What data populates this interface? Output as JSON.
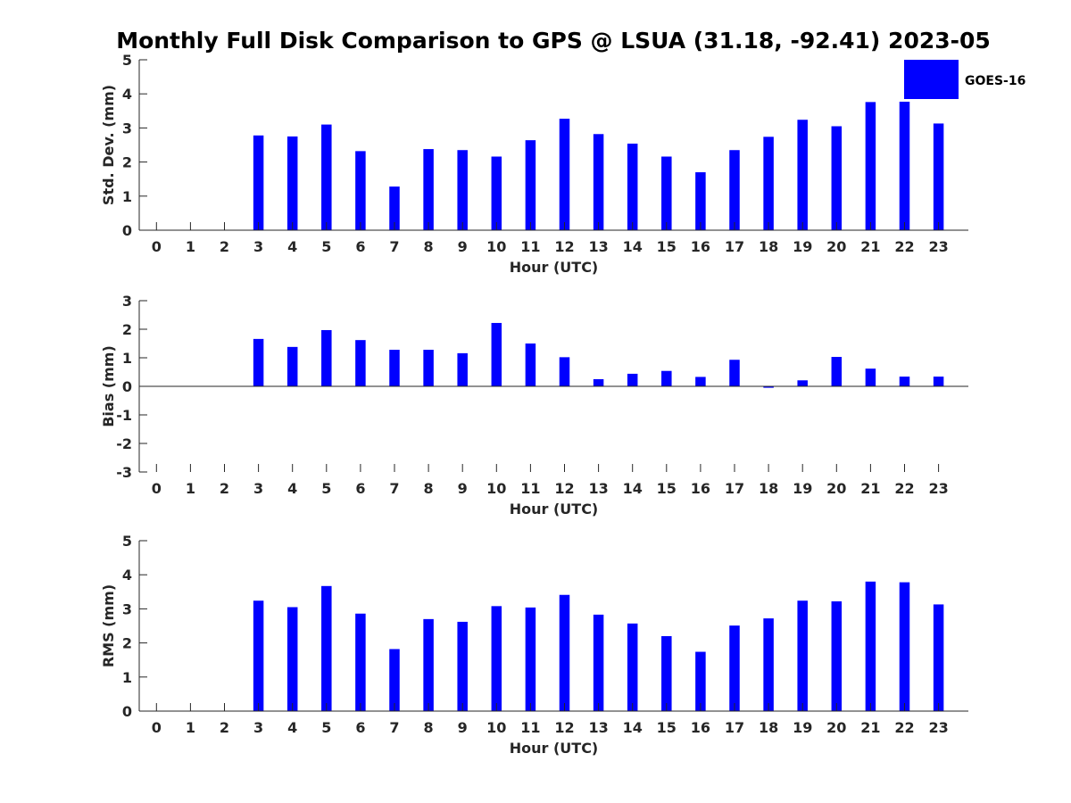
{
  "chart_data": [
    {
      "type": "bar",
      "id": "std",
      "title": "Monthly Full Disk Comparison to GPS @ LSUA (31.18, -92.41) 2023-05",
      "xlabel": "Hour (UTC)",
      "ylabel": "Std. Dev. (mm)",
      "categories": [
        "0",
        "1",
        "2",
        "3",
        "4",
        "5",
        "6",
        "7",
        "8",
        "9",
        "10",
        "11",
        "12",
        "13",
        "14",
        "15",
        "16",
        "17",
        "18",
        "19",
        "20",
        "21",
        "22",
        "23"
      ],
      "series": [
        {
          "name": "GOES-16",
          "color": "#0000ff",
          "values": [
            null,
            null,
            null,
            2.78,
            2.75,
            3.1,
            2.32,
            1.28,
            2.38,
            2.35,
            2.16,
            2.64,
            3.27,
            2.82,
            2.54,
            2.16,
            1.7,
            2.35,
            2.74,
            3.24,
            3.05,
            3.76,
            3.77,
            3.13
          ]
        }
      ],
      "ylim": [
        0,
        5
      ],
      "yticks": [
        0,
        1,
        2,
        3,
        4,
        5
      ],
      "legend": "top-right",
      "grid": false
    },
    {
      "type": "bar",
      "id": "bias",
      "title": "",
      "xlabel": "Hour (UTC)",
      "ylabel": "Bias (mm)",
      "categories": [
        "0",
        "1",
        "2",
        "3",
        "4",
        "5",
        "6",
        "7",
        "8",
        "9",
        "10",
        "11",
        "12",
        "13",
        "14",
        "15",
        "16",
        "17",
        "18",
        "19",
        "20",
        "21",
        "22",
        "23"
      ],
      "series": [
        {
          "name": "GOES-16",
          "color": "#0000ff",
          "values": [
            null,
            null,
            null,
            1.66,
            1.38,
            1.97,
            1.62,
            1.28,
            1.28,
            1.16,
            2.22,
            1.5,
            1.02,
            0.25,
            0.44,
            0.54,
            0.33,
            0.93,
            -0.05,
            0.21,
            1.03,
            0.62,
            0.34,
            0.34
          ]
        }
      ],
      "ylim": [
        -3,
        3
      ],
      "yticks": [
        -3,
        -2,
        -1,
        0,
        1,
        2,
        3
      ],
      "grid": false
    },
    {
      "type": "bar",
      "id": "rms",
      "title": "",
      "xlabel": "Hour (UTC)",
      "ylabel": "RMS (mm)",
      "categories": [
        "0",
        "1",
        "2",
        "3",
        "4",
        "5",
        "6",
        "7",
        "8",
        "9",
        "10",
        "11",
        "12",
        "13",
        "14",
        "15",
        "16",
        "17",
        "18",
        "19",
        "20",
        "21",
        "22",
        "23"
      ],
      "series": [
        {
          "name": "GOES-16",
          "color": "#0000ff",
          "values": [
            null,
            null,
            null,
            3.24,
            3.05,
            3.67,
            2.86,
            1.82,
            2.7,
            2.62,
            3.08,
            3.04,
            3.41,
            2.83,
            2.57,
            2.2,
            1.74,
            2.51,
            2.72,
            3.24,
            3.22,
            3.8,
            3.78,
            3.13
          ]
        }
      ],
      "ylim": [
        0,
        5
      ],
      "yticks": [
        0,
        1,
        2,
        3,
        4,
        5
      ],
      "grid": false
    }
  ]
}
